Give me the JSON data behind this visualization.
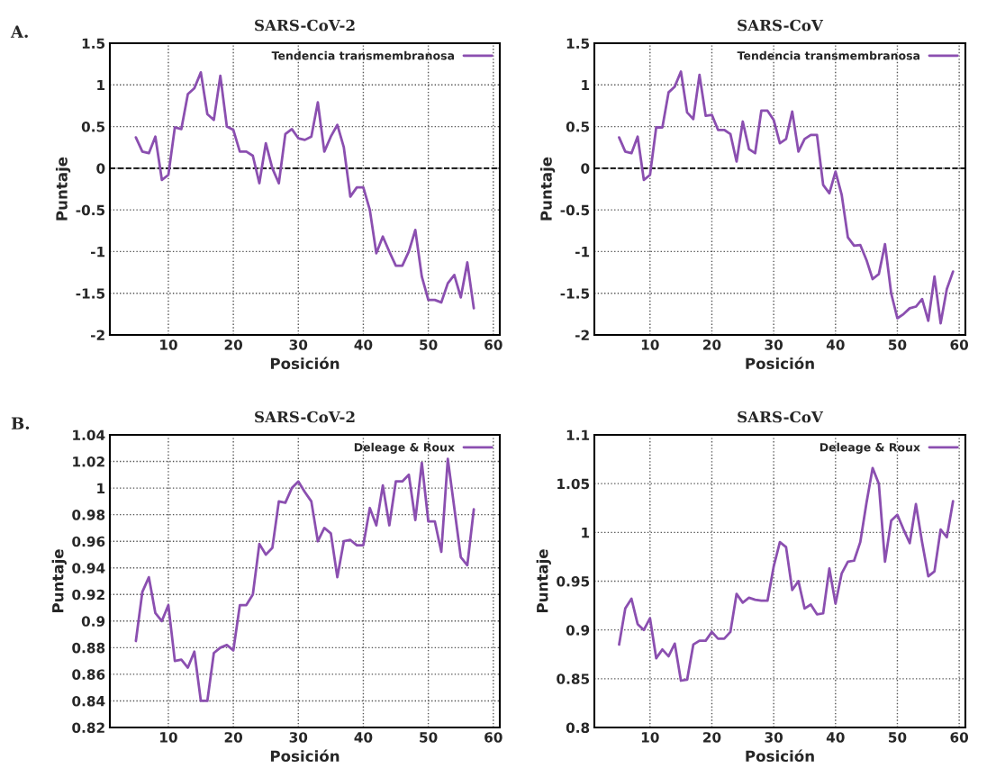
{
  "chart_data": [
    {
      "type": "line",
      "title": "SARS-CoV-2",
      "xlabel": "Posición",
      "ylabel": "Puntaje",
      "annotations": [
        "A."
      ],
      "xlim": [
        1,
        61
      ],
      "xticks": [
        10,
        20,
        30,
        40,
        50,
        60
      ],
      "ylim": [
        -2,
        1.5
      ],
      "yticks": [
        -2,
        -1.5,
        -1,
        -0.5,
        0,
        0.5,
        1,
        1.5
      ],
      "grid": true,
      "legend": "top right",
      "line_style": "solid",
      "ref_lines": [
        {
          "axis": "y",
          "value": 0,
          "color": "#000000",
          "line_style": "dashed"
        }
      ],
      "x": [
        5,
        6,
        7,
        8,
        9,
        10,
        11,
        12,
        13,
        14,
        15,
        16,
        17,
        18,
        19,
        20,
        21,
        22,
        23,
        24,
        25,
        26,
        27,
        28,
        29,
        30,
        31,
        32,
        33,
        34,
        35,
        36,
        37,
        38,
        39,
        40,
        41,
        42,
        43,
        44,
        45,
        46,
        47,
        48,
        49,
        50,
        51,
        52,
        53,
        54,
        55,
        56,
        57
      ],
      "series": [
        {
          "name": "Tendencia transmembranosa",
          "color": "#8b4fb0",
          "values": [
            0.37,
            0.2,
            0.18,
            0.38,
            -0.14,
            -0.08,
            0.49,
            0.47,
            0.89,
            0.96,
            1.15,
            0.65,
            0.58,
            1.11,
            0.5,
            0.46,
            0.2,
            0.2,
            0.15,
            -0.18,
            0.3,
            0.0,
            -0.18,
            0.41,
            0.47,
            0.36,
            0.34,
            0.38,
            0.79,
            0.2,
            0.38,
            0.52,
            0.25,
            -0.34,
            -0.23,
            -0.23,
            -0.5,
            -1.02,
            -0.82,
            -1.0,
            -1.17,
            -1.17,
            -1.0,
            -0.74,
            -1.3,
            -1.58,
            -1.58,
            -1.61,
            -1.38,
            -1.28,
            -1.55,
            -1.13,
            -1.68
          ]
        }
      ]
    },
    {
      "type": "line",
      "title": "SARS-CoV",
      "xlabel": "Posición",
      "ylabel": "Puntaje",
      "xlim": [
        1,
        61
      ],
      "xticks": [
        10,
        20,
        30,
        40,
        50,
        60
      ],
      "ylim": [
        -2,
        1.5
      ],
      "yticks": [
        -2,
        -1.5,
        -1,
        -0.5,
        0,
        0.5,
        1,
        1.5
      ],
      "grid": true,
      "legend": "top right",
      "line_style": "solid",
      "ref_lines": [
        {
          "axis": "y",
          "value": 0,
          "color": "#000000",
          "line_style": "dashed"
        }
      ],
      "x": [
        5,
        6,
        7,
        8,
        9,
        10,
        11,
        12,
        13,
        14,
        15,
        16,
        17,
        18,
        19,
        20,
        21,
        22,
        23,
        24,
        25,
        26,
        27,
        28,
        29,
        30,
        31,
        32,
        33,
        34,
        35,
        36,
        37,
        38,
        39,
        40,
        41,
        42,
        43,
        44,
        45,
        46,
        47,
        48,
        49,
        50,
        51,
        52,
        53,
        54,
        55,
        56,
        57,
        58,
        59
      ],
      "series": [
        {
          "name": "Tendencia transmembranosa",
          "color": "#8b4fb0",
          "values": [
            0.37,
            0.2,
            0.18,
            0.38,
            -0.14,
            -0.08,
            0.49,
            0.49,
            0.91,
            0.98,
            1.16,
            0.67,
            0.59,
            1.12,
            0.63,
            0.64,
            0.46,
            0.46,
            0.41,
            0.08,
            0.56,
            0.23,
            0.18,
            0.69,
            0.69,
            0.58,
            0.3,
            0.35,
            0.68,
            0.2,
            0.35,
            0.4,
            0.4,
            -0.2,
            -0.3,
            -0.04,
            -0.32,
            -0.83,
            -0.93,
            -0.92,
            -1.1,
            -1.33,
            -1.27,
            -0.91,
            -1.5,
            -1.8,
            -1.75,
            -1.68,
            -1.66,
            -1.57,
            -1.83,
            -1.3,
            -1.86,
            -1.45,
            -1.24
          ]
        }
      ]
    },
    {
      "type": "line",
      "title": "SARS-CoV-2",
      "xlabel": "Posición",
      "ylabel": "Puntaje",
      "annotations": [
        "B."
      ],
      "xlim": [
        1,
        61
      ],
      "xticks": [
        10,
        20,
        30,
        40,
        50,
        60
      ],
      "ylim": [
        0.82,
        1.04
      ],
      "yticks": [
        0.82,
        0.84,
        0.86,
        0.88,
        0.9,
        0.92,
        0.94,
        0.96,
        0.98,
        1,
        1.02,
        1.04
      ],
      "grid": true,
      "legend": "top right",
      "line_style": "solid",
      "x": [
        5,
        6,
        7,
        8,
        9,
        10,
        11,
        12,
        13,
        14,
        15,
        16,
        17,
        18,
        19,
        20,
        21,
        22,
        23,
        24,
        25,
        26,
        27,
        28,
        29,
        30,
        31,
        32,
        33,
        34,
        35,
        36,
        37,
        38,
        39,
        40,
        41,
        42,
        43,
        44,
        45,
        46,
        47,
        48,
        49,
        50,
        51,
        52,
        53,
        54,
        55,
        56,
        57
      ],
      "series": [
        {
          "name": "Deleage & Roux",
          "color": "#8b4fb0",
          "values": [
            0.885,
            0.922,
            0.933,
            0.906,
            0.9,
            0.912,
            0.87,
            0.871,
            0.865,
            0.877,
            0.84,
            0.84,
            0.876,
            0.88,
            0.882,
            0.878,
            0.912,
            0.912,
            0.92,
            0.958,
            0.95,
            0.955,
            0.99,
            0.989,
            1.0,
            1.005,
            0.997,
            0.99,
            0.96,
            0.97,
            0.966,
            0.933,
            0.96,
            0.961,
            0.957,
            0.957,
            0.985,
            0.972,
            1.002,
            0.972,
            1.005,
            1.005,
            1.01,
            0.976,
            1.019,
            0.975,
            0.975,
            0.952,
            1.022,
            0.985,
            0.948,
            0.942,
            0.984
          ]
        }
      ]
    },
    {
      "type": "line",
      "title": "SARS-CoV",
      "xlabel": "Posición",
      "ylabel": "Puntaje",
      "xlim": [
        1,
        61
      ],
      "xticks": [
        10,
        20,
        30,
        40,
        50,
        60
      ],
      "ylim": [
        0.8,
        1.1
      ],
      "yticks": [
        0.8,
        0.85,
        0.9,
        0.95,
        1,
        1.05,
        1.1
      ],
      "grid": true,
      "legend": "top right",
      "line_style": "solid",
      "x": [
        5,
        6,
        7,
        8,
        9,
        10,
        11,
        12,
        13,
        14,
        15,
        16,
        17,
        18,
        19,
        20,
        21,
        22,
        23,
        24,
        25,
        26,
        27,
        28,
        29,
        30,
        31,
        32,
        33,
        34,
        35,
        36,
        37,
        38,
        39,
        40,
        41,
        42,
        43,
        44,
        45,
        46,
        47,
        48,
        49,
        50,
        51,
        52,
        53,
        54,
        55,
        56,
        57,
        58,
        59
      ],
      "series": [
        {
          "name": "Deleage & Roux",
          "color": "#8b4fb0",
          "values": [
            0.885,
            0.922,
            0.932,
            0.906,
            0.9,
            0.912,
            0.871,
            0.88,
            0.873,
            0.886,
            0.848,
            0.849,
            0.885,
            0.889,
            0.889,
            0.898,
            0.891,
            0.891,
            0.898,
            0.937,
            0.928,
            0.933,
            0.931,
            0.93,
            0.93,
            0.965,
            0.99,
            0.985,
            0.941,
            0.95,
            0.922,
            0.926,
            0.916,
            0.917,
            0.963,
            0.927,
            0.958,
            0.97,
            0.971,
            0.99,
            1.03,
            1.066,
            1.05,
            0.97,
            1.012,
            1.018,
            1.003,
            0.989,
            1.029,
            0.99,
            0.955,
            0.96,
            1.003,
            0.995,
            1.032
          ]
        }
      ]
    }
  ]
}
